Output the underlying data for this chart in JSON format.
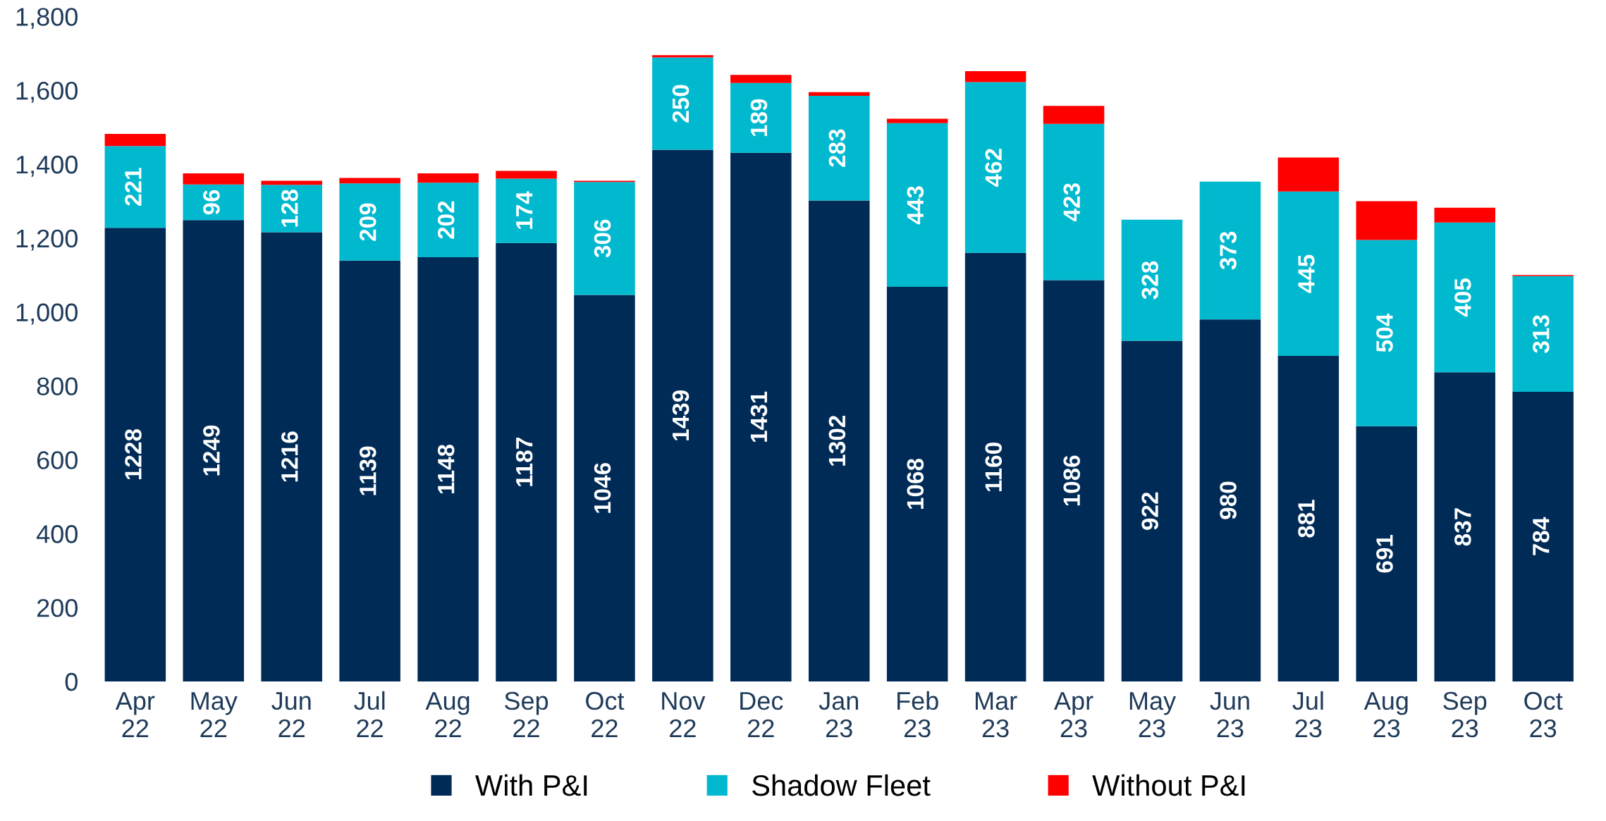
{
  "chart_data": {
    "type": "bar",
    "stacked": true,
    "categories": [
      "Apr\n22",
      "May\n22",
      "Jun\n22",
      "Jul\n22",
      "Aug\n22",
      "Sep\n22",
      "Oct\n22",
      "Nov\n22",
      "Dec\n22",
      "Jan\n23",
      "Feb\n23",
      "Mar\n23",
      "Apr\n23",
      "May\n23",
      "Jun\n23",
      "Jul\n23",
      "Aug\n23",
      "Sep\n23",
      "Oct\n23"
    ],
    "series": [
      {
        "name": "With P&I",
        "color": "#002b57",
        "values": [
          1228,
          1249,
          1216,
          1139,
          1148,
          1187,
          1046,
          1439,
          1431,
          1302,
          1068,
          1160,
          1086,
          922,
          980,
          881,
          691,
          837,
          784
        ],
        "value_labels": [
          "1228",
          "1249",
          "1216",
          "1139",
          "1148",
          "1187",
          "1046",
          "1439",
          "1431",
          "1302",
          "1068",
          "1160",
          "1086",
          "922",
          "980",
          "881",
          "691",
          "837",
          "784"
        ]
      },
      {
        "name": "Shadow Fleet",
        "color": "#00b9cf",
        "values": [
          221,
          96,
          128,
          209,
          202,
          174,
          306,
          250,
          189,
          283,
          443,
          462,
          423,
          328,
          373,
          445,
          504,
          405,
          313
        ],
        "value_labels": [
          "221",
          "96",
          "128",
          "209",
          "202",
          "174",
          "306",
          "250",
          "189",
          "283",
          "443",
          "462",
          "423",
          "328",
          "373",
          "445",
          "504",
          "405",
          "313"
        ]
      },
      {
        "name": "Without P&I",
        "color": "#ff0000",
        "values": [
          33,
          30,
          11,
          15,
          25,
          21,
          3,
          6,
          22,
          10,
          12,
          30,
          49,
          0,
          0,
          92,
          105,
          40,
          3
        ]
      }
    ],
    "ylim": [
      0,
      1800
    ],
    "yticks": [
      0,
      200,
      400,
      600,
      800,
      {
        "value": 1000,
        "label": "1,000"
      },
      {
        "value": 1200,
        "label": "1,200"
      },
      {
        "value": 1400,
        "label": "1,400"
      },
      {
        "value": 1600,
        "label": "1,600"
      },
      {
        "value": 1800,
        "label": "1,800"
      }
    ],
    "grid": false,
    "legend": "bottom"
  }
}
